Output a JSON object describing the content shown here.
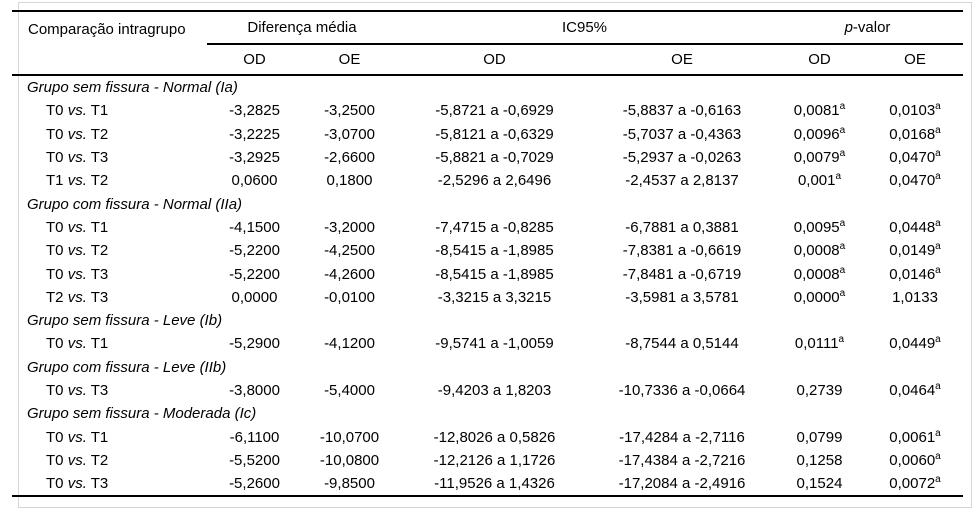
{
  "page": {
    "background": "#ffffff",
    "text_color": "#000000",
    "rule_color": "#000000",
    "frame_color": "#d6d6d6"
  },
  "table": {
    "header": {
      "comparison_label": "Comparação intragrupo",
      "spanners": [
        {
          "pre": "",
          "label": "Diferença média"
        },
        {
          "pre": "",
          "label": "IC95%"
        },
        {
          "pre": "p",
          "label": "-valor"
        }
      ],
      "sub_labels": [
        "OD",
        "OE",
        "OD",
        "OE",
        "OD",
        "OE"
      ]
    },
    "vs_label": "vs.",
    "sections": [
      {
        "title": "Grupo sem fissura - Normal (Ia)",
        "rows": [
          {
            "c": {
              "left": "T0",
              "right": "T1"
            },
            "dm": [
              "-3,2825",
              "-3,2500"
            ],
            "ic": [
              "-5,8721 a -0,6929",
              "-5,8837 a -0,6163"
            ],
            "p": [
              {
                "v": "0,0081",
                "s": "a"
              },
              {
                "v": "0,0103",
                "s": "a"
              }
            ]
          },
          {
            "c": {
              "left": "T0",
              "right": "T2"
            },
            "dm": [
              "-3,2225",
              "-3,0700"
            ],
            "ic": [
              "-5,8121 a -0,6329",
              "-5,7037 a -0,4363"
            ],
            "p": [
              {
                "v": "0,0096",
                "s": "a"
              },
              {
                "v": "0,0168",
                "s": "a"
              }
            ]
          },
          {
            "c": {
              "left": "T0",
              "right": "T3"
            },
            "dm": [
              "-3,2925",
              "-2,6600"
            ],
            "ic": [
              "-5,8821 a -0,7029",
              "-5,2937 a -0,0263"
            ],
            "p": [
              {
                "v": "0,0079",
                "s": "a"
              },
              {
                "v": "0,0470",
                "s": "a"
              }
            ]
          },
          {
            "c": {
              "left": "T1",
              "right": "T2"
            },
            "dm": [
              "0,0600",
              "0,1800"
            ],
            "ic": [
              "-2,5296 a 2,6496",
              "-2,4537 a 2,8137"
            ],
            "p": [
              {
                "v": "0,001",
                "s": "a"
              },
              {
                "v": "0,0470",
                "s": "a"
              }
            ]
          }
        ]
      },
      {
        "title": "Grupo com fissura - Normal (IIa)",
        "rows": [
          {
            "c": {
              "left": "T0",
              "right": "T1"
            },
            "dm": [
              "-4,1500",
              "-3,2000"
            ],
            "ic": [
              "-7,4715 a -0,8285",
              "-6,7881 a 0,3881"
            ],
            "p": [
              {
                "v": "0,0095",
                "s": "a"
              },
              {
                "v": "0,0448",
                "s": "a"
              }
            ]
          },
          {
            "c": {
              "left": "T0",
              "right": "T2"
            },
            "dm": [
              "-5,2200",
              "-4,2500"
            ],
            "ic": [
              "-8,5415 a -1,8985",
              "-7,8381 a -0,6619"
            ],
            "p": [
              {
                "v": "0,0008",
                "s": "a"
              },
              {
                "v": "0,0149",
                "s": "a"
              }
            ]
          },
          {
            "c": {
              "left": "T0",
              "right": "T3"
            },
            "dm": [
              "-5,2200",
              "-4,2600"
            ],
            "ic": [
              "-8,5415 a -1,8985",
              "-7,8481 a -0,6719"
            ],
            "p": [
              {
                "v": "0,0008",
                "s": "a"
              },
              {
                "v": "0,0146",
                "s": "a"
              }
            ]
          },
          {
            "c": {
              "left": "T2",
              "right": "T3"
            },
            "dm": [
              "0,0000",
              "-0,0100"
            ],
            "ic": [
              "-3,3215 a 3,3215",
              "-3,5981 a 3,5781"
            ],
            "p": [
              {
                "v": "0,0000",
                "s": "a"
              },
              {
                "v": "1,0133",
                "s": ""
              }
            ]
          }
        ]
      },
      {
        "title": "Grupo sem fissura - Leve (Ib)",
        "rows": [
          {
            "c": {
              "left": "T0",
              "right": "T1"
            },
            "dm": [
              "-5,2900",
              "-4,1200"
            ],
            "ic": [
              "-9,5741 a -1,0059",
              "-8,7544 a 0,5144"
            ],
            "p": [
              {
                "v": "0,0111",
                "s": "a"
              },
              {
                "v": "0,0449",
                "s": "a"
              }
            ]
          }
        ]
      },
      {
        "title": "Grupo com fissura - Leve (IIb)",
        "rows": [
          {
            "c": {
              "left": "T0",
              "right": "T3"
            },
            "dm": [
              "-3,8000",
              "-5,4000"
            ],
            "ic": [
              "-9,4203 a 1,8203",
              "-10,7336 a -0,0664"
            ],
            "p": [
              {
                "v": "0,2739",
                "s": ""
              },
              {
                "v": "0,0464",
                "s": "a"
              }
            ]
          }
        ]
      },
      {
        "title": "Grupo sem fissura - Moderada (Ic)",
        "rows": [
          {
            "c": {
              "left": "T0",
              "right": "T1"
            },
            "dm": [
              "-6,1100",
              "-10,0700"
            ],
            "ic": [
              "-12,8026 a 0,5826",
              "-17,4284 a -2,7116"
            ],
            "p": [
              {
                "v": "0,0799",
                "s": ""
              },
              {
                "v": "0,0061",
                "s": "a"
              }
            ]
          },
          {
            "c": {
              "left": "T0",
              "right": "T2"
            },
            "dm": [
              "-5,5200",
              "-10,0800"
            ],
            "ic": [
              "-12,2126 a 1,1726",
              "-17,4384 a -2,7216"
            ],
            "p": [
              {
                "v": "0,1258",
                "s": ""
              },
              {
                "v": "0,0060",
                "s": "a"
              }
            ]
          },
          {
            "c": {
              "left": "T0",
              "right": "T3"
            },
            "dm": [
              "-5,2600",
              "-9,8500"
            ],
            "ic": [
              "-11,9526 a 1,4326",
              "-17,2084 a -2,4916"
            ],
            "p": [
              {
                "v": "0,1524",
                "s": ""
              },
              {
                "v": "0,0072",
                "s": "a"
              }
            ]
          }
        ]
      }
    ]
  }
}
